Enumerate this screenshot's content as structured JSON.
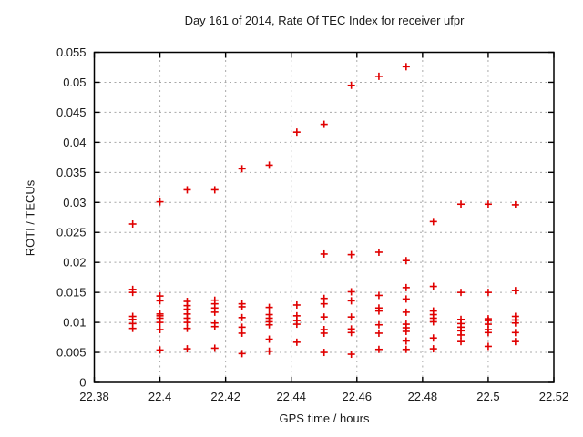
{
  "page": {
    "background_color": "#ffffff",
    "text_color": "#1a1a1a"
  },
  "chart_data": {
    "type": "scatter",
    "title": "Day 161 of 2014, Rate Of TEC Index for receiver ufpr",
    "xlabel": "GPS time / hours",
    "ylabel": "ROTI / TECUs",
    "xlim": [
      22.38,
      22.52
    ],
    "ylim": [
      0,
      0.055
    ],
    "grid": true,
    "grid_color": "#a8a8a8",
    "border_color": "#000000",
    "legend_position": "none",
    "marker": {
      "shape": "plus",
      "color": "#e00000",
      "size": 4,
      "stroke_width": 1.6
    },
    "x_ticks": [
      {
        "v": 22.38,
        "label": "22.38"
      },
      {
        "v": 22.4,
        "label": "22.4"
      },
      {
        "v": 22.42,
        "label": "22.42"
      },
      {
        "v": 22.44,
        "label": "22.44"
      },
      {
        "v": 22.46,
        "label": "22.46"
      },
      {
        "v": 22.48,
        "label": "22.48"
      },
      {
        "v": 22.5,
        "label": "22.5"
      },
      {
        "v": 22.52,
        "label": "22.52"
      }
    ],
    "y_ticks": [
      {
        "v": 0.0,
        "label": "0"
      },
      {
        "v": 0.005,
        "label": "0.005"
      },
      {
        "v": 0.01,
        "label": "0.01"
      },
      {
        "v": 0.015,
        "label": "0.015"
      },
      {
        "v": 0.02,
        "label": "0.02"
      },
      {
        "v": 0.025,
        "label": "0.025"
      },
      {
        "v": 0.03,
        "label": "0.03"
      },
      {
        "v": 0.035,
        "label": "0.035"
      },
      {
        "v": 0.04,
        "label": "0.04"
      },
      {
        "v": 0.045,
        "label": "0.045"
      },
      {
        "v": 0.05,
        "label": "0.05"
      },
      {
        "v": 0.055,
        "label": "0.055"
      }
    ],
    "series": [
      {
        "name": "ROTI",
        "points": [
          [
            22.3917,
            0.0264
          ],
          [
            22.3917,
            0.0155
          ],
          [
            22.3917,
            0.015
          ],
          [
            22.3917,
            0.011
          ],
          [
            22.3917,
            0.0105
          ],
          [
            22.3917,
            0.0098
          ],
          [
            22.3917,
            0.009
          ],
          [
            22.4,
            0.0301
          ],
          [
            22.4,
            0.0144
          ],
          [
            22.4,
            0.0136
          ],
          [
            22.4,
            0.0114
          ],
          [
            22.4,
            0.0111
          ],
          [
            22.4,
            0.0107
          ],
          [
            22.4,
            0.01
          ],
          [
            22.4,
            0.0088
          ],
          [
            22.4,
            0.0054
          ],
          [
            22.4083,
            0.0321
          ],
          [
            22.4083,
            0.0135
          ],
          [
            22.4083,
            0.0128
          ],
          [
            22.4083,
            0.0122
          ],
          [
            22.4083,
            0.0114
          ],
          [
            22.4083,
            0.0107
          ],
          [
            22.4083,
            0.01
          ],
          [
            22.4083,
            0.009
          ],
          [
            22.4083,
            0.0056
          ],
          [
            22.4167,
            0.0321
          ],
          [
            22.4167,
            0.0137
          ],
          [
            22.4167,
            0.0131
          ],
          [
            22.4167,
            0.0124
          ],
          [
            22.4167,
            0.0117
          ],
          [
            22.4167,
            0.0099
          ],
          [
            22.4167,
            0.0093
          ],
          [
            22.4167,
            0.0057
          ],
          [
            22.425,
            0.0356
          ],
          [
            22.425,
            0.0131
          ],
          [
            22.425,
            0.0126
          ],
          [
            22.425,
            0.0108
          ],
          [
            22.425,
            0.0092
          ],
          [
            22.425,
            0.0082
          ],
          [
            22.425,
            0.0048
          ],
          [
            22.4333,
            0.0362
          ],
          [
            22.4333,
            0.0125
          ],
          [
            22.4333,
            0.0113
          ],
          [
            22.4333,
            0.0107
          ],
          [
            22.4333,
            0.0101
          ],
          [
            22.4333,
            0.0096
          ],
          [
            22.4333,
            0.0072
          ],
          [
            22.4333,
            0.0052
          ],
          [
            22.4417,
            0.0417
          ],
          [
            22.4417,
            0.0129
          ],
          [
            22.4417,
            0.0111
          ],
          [
            22.4417,
            0.0103
          ],
          [
            22.4417,
            0.0097
          ],
          [
            22.4417,
            0.0067
          ],
          [
            22.45,
            0.043
          ],
          [
            22.45,
            0.0214
          ],
          [
            22.45,
            0.014
          ],
          [
            22.45,
            0.0131
          ],
          [
            22.45,
            0.0109
          ],
          [
            22.45,
            0.0088
          ],
          [
            22.45,
            0.0082
          ],
          [
            22.45,
            0.005
          ],
          [
            22.4583,
            0.0495
          ],
          [
            22.4583,
            0.0213
          ],
          [
            22.4583,
            0.0151
          ],
          [
            22.4583,
            0.0136
          ],
          [
            22.4583,
            0.0109
          ],
          [
            22.4583,
            0.0089
          ],
          [
            22.4583,
            0.0083
          ],
          [
            22.4583,
            0.0047
          ],
          [
            22.4667,
            0.051
          ],
          [
            22.4667,
            0.0217
          ],
          [
            22.4667,
            0.0145
          ],
          [
            22.4667,
            0.0124
          ],
          [
            22.4667,
            0.0119
          ],
          [
            22.4667,
            0.0096
          ],
          [
            22.4667,
            0.0082
          ],
          [
            22.4667,
            0.0055
          ],
          [
            22.475,
            0.0526
          ],
          [
            22.475,
            0.0203
          ],
          [
            22.475,
            0.0158
          ],
          [
            22.475,
            0.0139
          ],
          [
            22.475,
            0.0117
          ],
          [
            22.475,
            0.0097
          ],
          [
            22.475,
            0.0091
          ],
          [
            22.475,
            0.0085
          ],
          [
            22.475,
            0.0069
          ],
          [
            22.475,
            0.0055
          ],
          [
            22.4833,
            0.0268
          ],
          [
            22.4833,
            0.016
          ],
          [
            22.4833,
            0.0119
          ],
          [
            22.4833,
            0.0113
          ],
          [
            22.4833,
            0.0107
          ],
          [
            22.4833,
            0.0101
          ],
          [
            22.4833,
            0.0074
          ],
          [
            22.4833,
            0.0056
          ],
          [
            22.4917,
            0.0297
          ],
          [
            22.4917,
            0.015
          ],
          [
            22.4917,
            0.0105
          ],
          [
            22.4917,
            0.0098
          ],
          [
            22.4917,
            0.0092
          ],
          [
            22.4917,
            0.0086
          ],
          [
            22.4917,
            0.0079
          ],
          [
            22.4917,
            0.0068
          ],
          [
            22.5,
            0.0297
          ],
          [
            22.5,
            0.015
          ],
          [
            22.5,
            0.0106
          ],
          [
            22.5,
            0.0103
          ],
          [
            22.5,
            0.0097
          ],
          [
            22.5,
            0.0088
          ],
          [
            22.5,
            0.0083
          ],
          [
            22.5,
            0.006
          ],
          [
            22.5083,
            0.0296
          ],
          [
            22.5083,
            0.0153
          ],
          [
            22.5083,
            0.011
          ],
          [
            22.5083,
            0.0104
          ],
          [
            22.5083,
            0.0099
          ],
          [
            22.5083,
            0.0083
          ],
          [
            22.5083,
            0.0068
          ]
        ]
      }
    ]
  }
}
